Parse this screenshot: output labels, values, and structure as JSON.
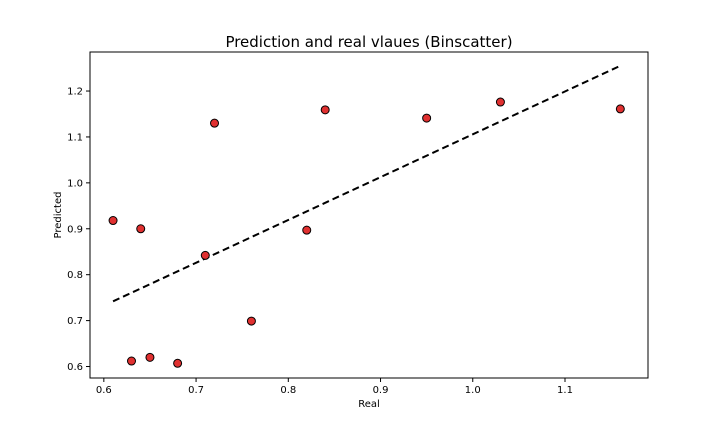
{
  "chart_data": {
    "type": "scatter",
    "title": "Prediction and real vlaues (Binscatter)",
    "xlabel": "Real",
    "ylabel": "Predicted",
    "xlim": [
      0.585,
      1.19
    ],
    "ylim": [
      0.575,
      1.285
    ],
    "xticks": [
      0.6,
      0.7,
      0.8,
      0.9,
      1.0,
      1.1
    ],
    "xtick_labels": [
      "0.6",
      "0.7",
      "0.8",
      "0.9",
      "1.0",
      "1.1"
    ],
    "yticks": [
      0.6,
      0.7,
      0.8,
      0.9,
      1.0,
      1.1,
      1.2
    ],
    "ytick_labels": [
      "0.6",
      "0.7",
      "0.8",
      "0.9",
      "1.0",
      "1.1",
      "1.2"
    ],
    "grid": false,
    "point_color": "#e03030",
    "point_edge_color": "#000000",
    "line_color": "#000000",
    "points": [
      {
        "x": 0.61,
        "y": 0.918
      },
      {
        "x": 0.63,
        "y": 0.612
      },
      {
        "x": 0.64,
        "y": 0.9
      },
      {
        "x": 0.65,
        "y": 0.62
      },
      {
        "x": 0.68,
        "y": 0.607
      },
      {
        "x": 0.71,
        "y": 0.842
      },
      {
        "x": 0.72,
        "y": 1.13
      },
      {
        "x": 0.76,
        "y": 0.699
      },
      {
        "x": 0.82,
        "y": 0.897
      },
      {
        "x": 0.84,
        "y": 1.159
      },
      {
        "x": 0.95,
        "y": 1.141
      },
      {
        "x": 1.03,
        "y": 1.176
      },
      {
        "x": 1.16,
        "y": 1.161
      }
    ],
    "fit_line": {
      "style": "dashed",
      "points": [
        {
          "x": 0.61,
          "y": 0.742
        },
        {
          "x": 1.16,
          "y": 1.255
        }
      ]
    }
  }
}
